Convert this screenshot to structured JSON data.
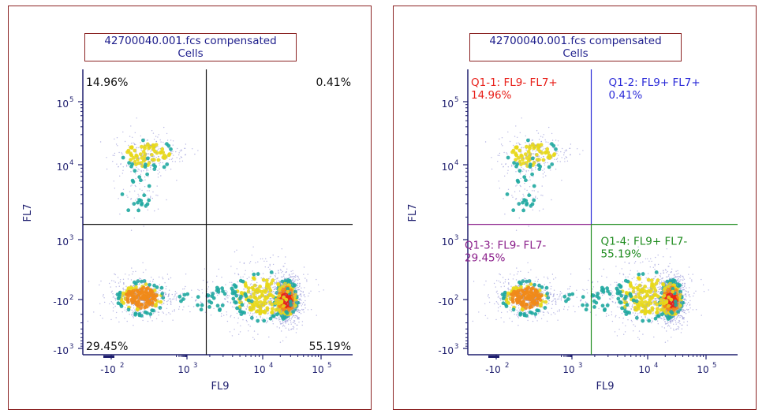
{
  "colors": {
    "frame": "#8b2323",
    "axis": "#1e1e6e",
    "title_text": "#1e1e8c",
    "q1_1": "#e8201a",
    "q1_2": "#2b2bd8",
    "q1_3": "#8b1f8b",
    "q1_4": "#1f8c1f",
    "black": "#111111"
  },
  "chart_data": [
    {
      "type": "scatter",
      "title": "42700040.001.fcs compensated",
      "subtitle": "Cells",
      "xlabel": "FL9",
      "ylabel": "FL7",
      "x_ticks": [
        {
          "label": "-10",
          "exp": "2",
          "value": -100
        },
        {
          "label": "10",
          "exp": "3",
          "value": 1000
        },
        {
          "label": "10",
          "exp": "4",
          "value": 10000
        },
        {
          "label": "10",
          "exp": "5",
          "value": 100000
        }
      ],
      "y_ticks": [
        {
          "label": "10",
          "exp": "5",
          "value": 100000
        },
        {
          "label": "10",
          "exp": "4",
          "value": 10000
        },
        {
          "label": "10",
          "exp": "3",
          "value": 1000
        },
        {
          "label": "-10",
          "exp": "2",
          "value": -100
        },
        {
          "label": "-10",
          "exp": "3",
          "value": -1000
        }
      ],
      "gate_x": 1800,
      "gate_y": 1600,
      "quadrant_color": "black",
      "quadrants": [
        {
          "position": "top-left",
          "name": "",
          "percent": "14.96%"
        },
        {
          "position": "top-right",
          "name": "",
          "percent": "0.41%"
        },
        {
          "position": "bottom-left",
          "name": "",
          "percent": "29.45%"
        },
        {
          "position": "bottom-right",
          "name": "",
          "percent": "55.19%"
        }
      ]
    },
    {
      "type": "scatter",
      "title": "42700040.001.fcs compensated",
      "subtitle": "Cells",
      "xlabel": "FL9",
      "ylabel": "FL7",
      "x_ticks": [
        {
          "label": "-10",
          "exp": "2",
          "value": -100
        },
        {
          "label": "10",
          "exp": "3",
          "value": 1000
        },
        {
          "label": "10",
          "exp": "4",
          "value": 10000
        },
        {
          "label": "10",
          "exp": "5",
          "value": 100000
        }
      ],
      "y_ticks": [
        {
          "label": "10",
          "exp": "5",
          "value": 100000
        },
        {
          "label": "10",
          "exp": "4",
          "value": 10000
        },
        {
          "label": "10",
          "exp": "3",
          "value": 1000
        },
        {
          "label": "-10",
          "exp": "2",
          "value": -100
        },
        {
          "label": "-10",
          "exp": "3",
          "value": -1000
        }
      ],
      "gate_x": 1800,
      "gate_y": 1600,
      "quadrant_color": "colored",
      "quadrants": [
        {
          "position": "top-left",
          "name": "Q1-1: FL9- FL7+",
          "percent": "14.96%"
        },
        {
          "position": "top-right",
          "name": "Q1-2: FL9+ FL7+",
          "percent": "0.41%"
        },
        {
          "position": "bottom-left",
          "name": "Q1-3: FL9- FL7-",
          "percent": "29.45%"
        },
        {
          "position": "bottom-right",
          "name": "Q1-4: FL9+ FL7-",
          "percent": "55.19%"
        }
      ]
    }
  ]
}
